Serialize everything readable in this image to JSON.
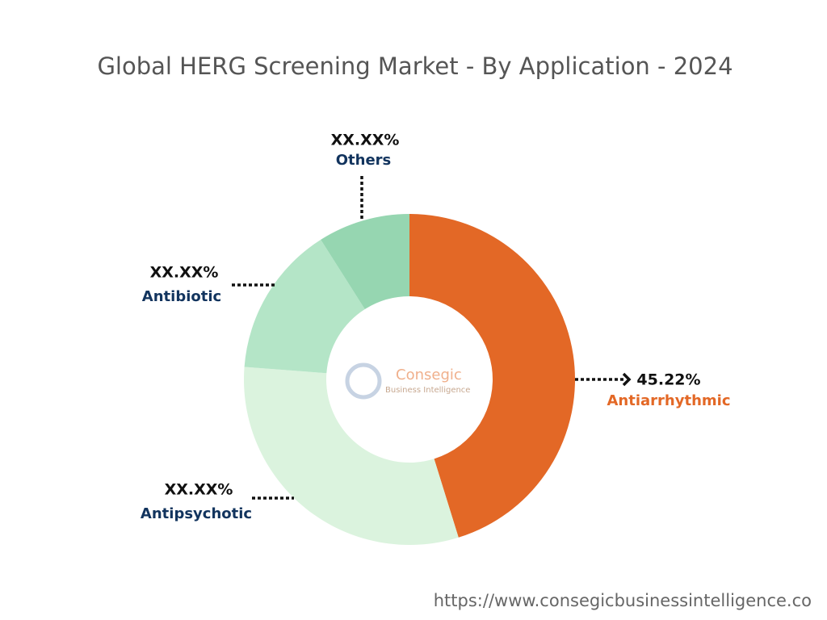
{
  "chart_data": {
    "type": "donut",
    "title": "Global HERG Screening Market - By Application - 2024",
    "categories": [
      "Antiarrhythmic",
      "Antipsychotic",
      "Antibiotic",
      "Others"
    ],
    "values": [
      45.22,
      31,
      14.8,
      9
    ],
    "value_labels": [
      "45.22%",
      "XX.XX%",
      "XX.XX%",
      "XX.XX%"
    ],
    "colors": [
      "#e36826",
      "#dbf3de",
      "#b4e5c7",
      "#96d6b1"
    ],
    "watermark": {
      "name": "Consegic",
      "tagline": "Business Intelligence"
    },
    "source": "https://www.consegicbusinessintelligence.co"
  }
}
